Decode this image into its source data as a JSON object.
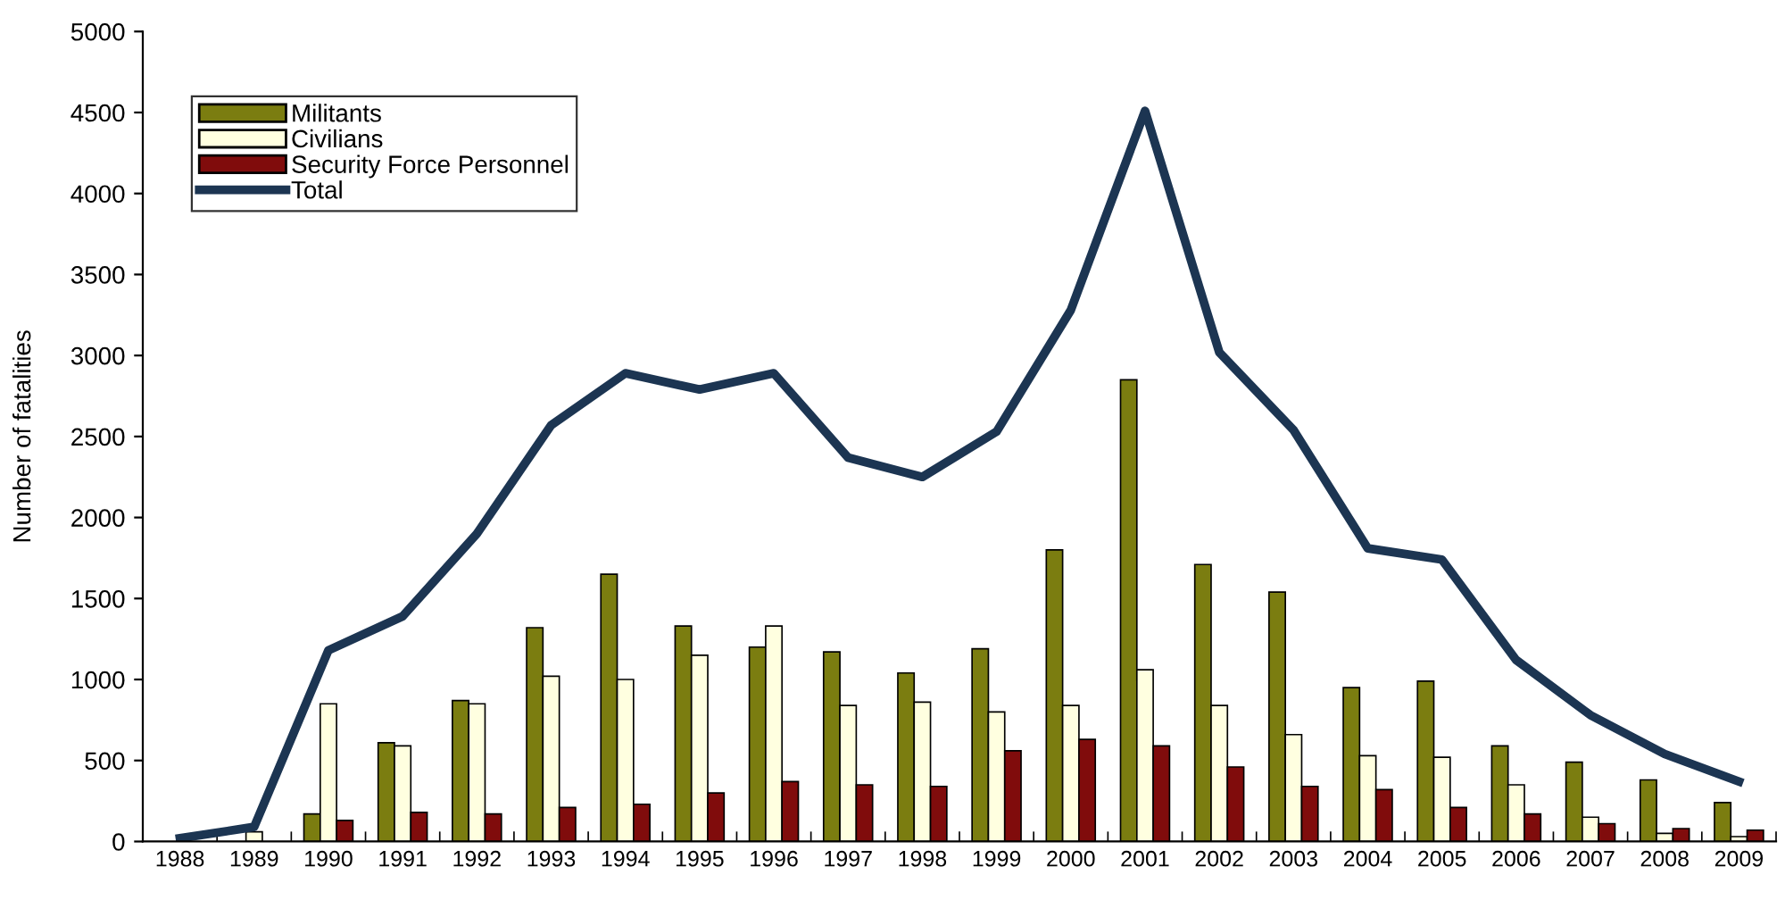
{
  "chart_data": {
    "type": "bar",
    "ylabel": "Number of fatalities",
    "categories": [
      "1988",
      "1989",
      "1990",
      "1991",
      "1992",
      "1993",
      "1994",
      "1995",
      "1996",
      "1997",
      "1998",
      "1999",
      "2000",
      "2001",
      "2002",
      "2003",
      "2004",
      "2005",
      "2006",
      "2007",
      "2008",
      "2009"
    ],
    "series": [
      {
        "name": "Militants",
        "color": "#7b7d10",
        "values": [
          null,
          null,
          170,
          610,
          870,
          1320,
          1650,
          1330,
          1200,
          1170,
          1040,
          1190,
          1800,
          2850,
          1710,
          1540,
          950,
          990,
          590,
          490,
          380,
          240
        ]
      },
      {
        "name": "Civilians",
        "color": "#ffffe0",
        "values": [
          null,
          60,
          850,
          590,
          850,
          1020,
          1000,
          1150,
          1330,
          840,
          860,
          800,
          840,
          1060,
          840,
          660,
          530,
          520,
          350,
          150,
          50,
          30
        ]
      },
      {
        "name": "Security Force Personnel",
        "color": "#800c0c",
        "values": [
          null,
          null,
          130,
          180,
          170,
          210,
          230,
          300,
          370,
          350,
          340,
          560,
          630,
          590,
          460,
          340,
          320,
          210,
          170,
          110,
          80,
          70
        ]
      },
      {
        "name": "Total",
        "type": "line",
        "color": "#1c3552",
        "values": [
          20,
          90,
          1180,
          1390,
          1900,
          2570,
          2890,
          2790,
          2890,
          2370,
          2250,
          2530,
          3280,
          4510,
          3020,
          2540,
          1810,
          1740,
          1120,
          780,
          540,
          370
        ]
      }
    ],
    "ylim": [
      0,
      5000
    ],
    "yticks": [
      0,
      500,
      1000,
      1500,
      2000,
      2500,
      3000,
      3500,
      4000,
      4500,
      5000
    ],
    "grid": false,
    "legend": "top left",
    "marker": "none",
    "line_style": "solid"
  }
}
